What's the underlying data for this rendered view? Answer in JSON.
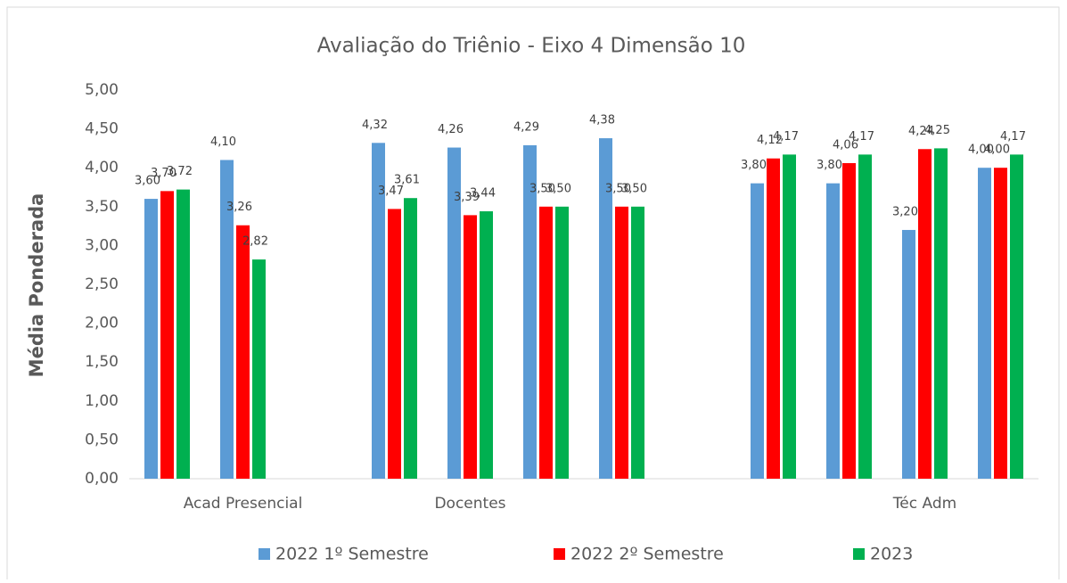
{
  "chart_data": {
    "type": "bar",
    "title": "Avaliação do Triênio - Eixo 4 Dimensão 10",
    "y_label": "Média Ponderada",
    "categories": [
      null,
      "Acad Presencial",
      null,
      null,
      "Docentes",
      null,
      null,
      null,
      null,
      null,
      "Téc Adm",
      null
    ],
    "series": [
      {
        "name": "2022 1º Semestre",
        "color": "#5b9bd5",
        "values": [
          3.6,
          4.1,
          null,
          4.32,
          4.26,
          4.29,
          4.38,
          null,
          3.8,
          3.8,
          3.2,
          4.0
        ],
        "value_labels": [
          "3,60",
          "4,10",
          null,
          "4,32",
          "4,26",
          "4,29",
          "4,38",
          null,
          "3,80",
          "3,80",
          "3,20",
          "4,00"
        ]
      },
      {
        "name": "2022 2º Semestre",
        "color": "#ff0000",
        "values": [
          3.7,
          3.26,
          null,
          3.47,
          3.39,
          3.5,
          3.5,
          null,
          4.12,
          4.06,
          4.24,
          4.0
        ],
        "value_labels": [
          "3,70",
          "3,26",
          null,
          "3,47",
          "3,39",
          "3,50",
          "3,50",
          null,
          "4,12",
          "4,06",
          "4,24",
          "4,00"
        ]
      },
      {
        "name": "2023",
        "color": "#00b050",
        "values": [
          3.72,
          2.82,
          null,
          3.61,
          3.44,
          3.5,
          3.5,
          null,
          4.17,
          4.17,
          4.25,
          4.17
        ],
        "value_labels": [
          "3,72",
          "2,82",
          null,
          "3,61",
          "3,44",
          "3,50",
          "3,50",
          null,
          "4,17",
          "4,17",
          "4,25",
          "4,17"
        ]
      }
    ],
    "ylim": [
      0,
      5
    ],
    "yticks": [
      {
        "value": 0,
        "label": "0,00"
      },
      {
        "value": 0.5,
        "label": "0,50"
      },
      {
        "value": 1,
        "label": "1,00"
      },
      {
        "value": 1.5,
        "label": "1,50"
      },
      {
        "value": 2,
        "label": "2,00"
      },
      {
        "value": 2.5,
        "label": "2,50"
      },
      {
        "value": 3,
        "label": "3,00"
      },
      {
        "value": 3.5,
        "label": "3,50"
      },
      {
        "value": 4,
        "label": "4,00"
      },
      {
        "value": 4.5,
        "label": "4,50"
      },
      {
        "value": 5,
        "label": "5,00"
      }
    ],
    "legend": "bottom",
    "grid": false
  }
}
